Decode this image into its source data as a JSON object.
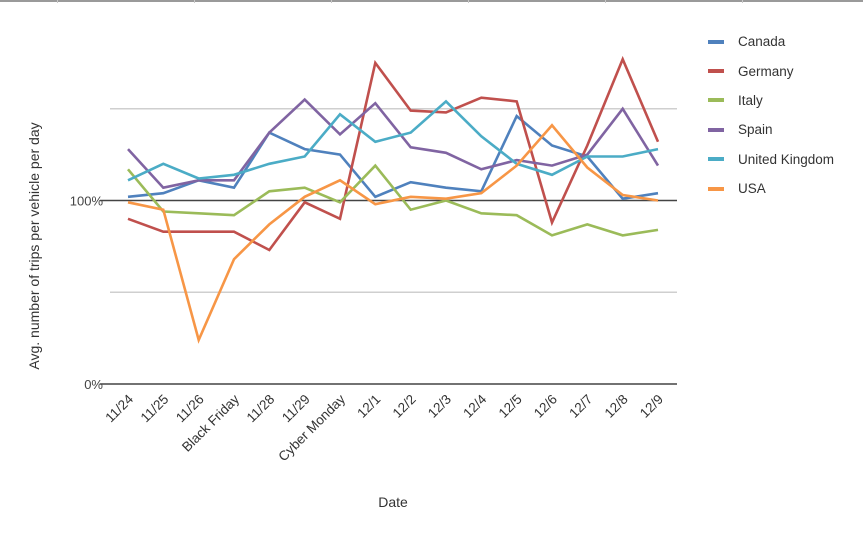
{
  "chart_data": {
    "type": "line",
    "title": "",
    "xlabel": "Date",
    "ylabel": "Avg. number of trips per vehicle per day",
    "ylim": [
      0,
      150
    ],
    "y_ticks_labeled": [
      "0%",
      "100%"
    ],
    "gridlines": [
      0,
      50,
      100,
      150
    ],
    "legend_position": "right",
    "categories": [
      "11/24",
      "11/25",
      "11/26",
      "Black Friday",
      "11/28",
      "11/29",
      "Cyber Monday",
      "12/1",
      "12/2",
      "12/3",
      "12/4",
      "12/5",
      "12/6",
      "12/7",
      "12/8",
      "12/9"
    ],
    "series": [
      {
        "name": "Canada",
        "color": "#4f81bd",
        "values": [
          102,
          104,
          111,
          107,
          137,
          128,
          125,
          102,
          110,
          107,
          105,
          146,
          130,
          124,
          101,
          104
        ]
      },
      {
        "name": "Germany",
        "color": "#c0504d",
        "values": [
          90,
          83,
          83,
          83,
          73,
          99,
          90,
          175,
          149,
          148,
          156,
          154,
          88,
          130,
          177,
          132
        ]
      },
      {
        "name": "Italy",
        "color": "#9bbb59",
        "values": [
          117,
          94,
          93,
          92,
          105,
          107,
          99,
          119,
          95,
          100,
          93,
          92,
          81,
          87,
          81,
          84
        ]
      },
      {
        "name": "Spain",
        "color": "#8064a2",
        "values": [
          128,
          107,
          111,
          111,
          137,
          155,
          136,
          153,
          129,
          126,
          117,
          122,
          119,
          125,
          150,
          119
        ]
      },
      {
        "name": "United Kingdom",
        "color": "#4bacc6",
        "values": [
          111,
          120,
          112,
          114,
          120,
          124,
          147,
          132,
          137,
          154,
          135,
          120,
          114,
          124,
          124,
          128
        ]
      },
      {
        "name": "USA",
        "color": "#f79646",
        "values": [
          99,
          95,
          24,
          68,
          87,
          102,
          111,
          98,
          102,
          101,
          104,
          119,
          141,
          118,
          103,
          100
        ]
      }
    ]
  },
  "legend": {
    "items": [
      {
        "label": "Canada",
        "color": "#4f81bd"
      },
      {
        "label": "Germany",
        "color": "#c0504d"
      },
      {
        "label": "Italy",
        "color": "#9bbb59"
      },
      {
        "label": "Spain",
        "color": "#8064a2"
      },
      {
        "label": "United Kingdom",
        "color": "#4bacc6"
      },
      {
        "label": "USA",
        "color": "#f79646"
      }
    ]
  },
  "axes": {
    "x_title": "Date",
    "y_title": "Avg. number of trips per vehicle per day",
    "y_label_0": "0%",
    "y_label_100": "100%"
  }
}
